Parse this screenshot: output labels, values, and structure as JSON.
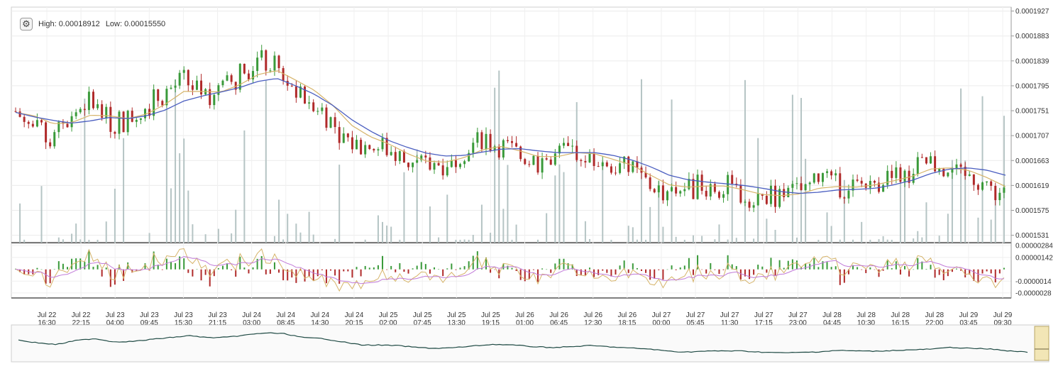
{
  "header": {
    "settings_icon": "gear-icon",
    "high_label": "High:",
    "high_value": "0.00018912",
    "low_label": "Low:",
    "low_value": "0.00015550"
  },
  "colors": {
    "up": "#3a9a3a",
    "down": "#b02a2a",
    "volume": "#b5c4c4",
    "ma_fast": "#d6b46a",
    "ma_slow": "#4a5ec0",
    "macd_line": "#d6b46a",
    "signal_line": "#c07ad8",
    "navigator": "#1f4a44"
  },
  "chart_data": {
    "type": "candlestick",
    "price_axis": {
      "ticks": [
        "0.0001927",
        "0.0001883",
        "0.0001839",
        "0.0001795",
        "0.0001751",
        "0.0001707",
        "0.0001663",
        "0.0001619",
        "0.0001575",
        "0.0001531"
      ],
      "range": [
        0.0001518,
        0.0001934
      ]
    },
    "indicator_axis": {
      "ticks": [
        "0.00000284",
        "0.00000142",
        "-0.0000014",
        "-0.0000028"
      ],
      "range": [
        -3.4e-06,
        3.1e-06
      ]
    },
    "time_labels": [
      {
        "d": "Jul 22",
        "t": "16:30"
      },
      {
        "d": "Jul 22",
        "t": "22:15"
      },
      {
        "d": "Jul 23",
        "t": "04:00"
      },
      {
        "d": "Jul 23",
        "t": "09:45"
      },
      {
        "d": "Jul 23",
        "t": "15:30"
      },
      {
        "d": "Jul 23",
        "t": "21:15"
      },
      {
        "d": "Jul 24",
        "t": "03:00"
      },
      {
        "d": "Jul 24",
        "t": "08:45"
      },
      {
        "d": "Jul 24",
        "t": "14:30"
      },
      {
        "d": "Jul 24",
        "t": "20:15"
      },
      {
        "d": "Jul 25",
        "t": "02:00"
      },
      {
        "d": "Jul 25",
        "t": "07:45"
      },
      {
        "d": "Jul 25",
        "t": "13:30"
      },
      {
        "d": "Jul 25",
        "t": "19:15"
      },
      {
        "d": "Jul 26",
        "t": "01:00"
      },
      {
        "d": "Jul 26",
        "t": "06:45"
      },
      {
        "d": "Jul 26",
        "t": "12:30"
      },
      {
        "d": "Jul 26",
        "t": "18:15"
      },
      {
        "d": "Jul 27",
        "t": "00:00"
      },
      {
        "d": "Jul 27",
        "t": "05:45"
      },
      {
        "d": "Jul 27",
        "t": "11:30"
      },
      {
        "d": "Jul 27",
        "t": "17:15"
      },
      {
        "d": "Jul 27",
        "t": "23:00"
      },
      {
        "d": "Jul 28",
        "t": "04:45"
      },
      {
        "d": "Jul 28",
        "t": "10:30"
      },
      {
        "d": "Jul 28",
        "t": "16:15"
      },
      {
        "d": "Jul 28",
        "t": "22:00"
      },
      {
        "d": "Jul 29",
        "t": "03:45"
      },
      {
        "d": "Jul 29",
        "t": "09:30"
      }
    ],
    "close": [
      0.000175,
      0.0001718,
      0.0001697,
      0.0001745,
      0.000177,
      0.000173,
      0.0001735,
      0.000176,
      0.0001783,
      0.0001805,
      0.000178,
      0.0001786,
      0.0001815,
      0.000184,
      0.0001828,
      0.000178,
      0.000177,
      0.000173,
      0.0001692,
      0.000169,
      0.0001683,
      0.000166,
      0.000165,
      0.000166,
      0.0001682,
      0.00017,
      0.000169,
      0.0001672,
      0.000166,
      0.000167,
      0.0001685,
      0.000167,
      0.0001655,
      0.0001645,
      0.000162,
      0.0001605,
      0.0001615,
      0.000162,
      0.0001618,
      0.0001605,
      0.0001596,
      0.00016,
      0.0001608,
      0.0001625,
      0.000162,
      0.0001615,
      0.0001625,
      0.0001633,
      0.0001642,
      0.0001662,
      0.000165,
      0.0001643,
      0.000162,
      0.0001603
    ],
    "ma_fast": [
      0.0001748,
      0.0001742,
      0.0001728,
      0.000173,
      0.0001743,
      0.0001742,
      0.0001737,
      0.0001745,
      0.0001762,
      0.0001785,
      0.0001785,
      0.0001784,
      0.0001797,
      0.0001815,
      0.0001822,
      0.0001805,
      0.0001787,
      0.000176,
      0.0001725,
      0.0001705,
      0.0001692,
      0.0001675,
      0.0001662,
      0.000166,
      0.0001668,
      0.0001682,
      0.0001688,
      0.000168,
      0.000167,
      0.000167,
      0.0001677,
      0.0001675,
      0.0001665,
      0.0001655,
      0.0001637,
      0.000162,
      0.0001616,
      0.0001618,
      0.0001618,
      0.0001611,
      0.0001603,
      0.0001601,
      0.0001604,
      0.0001614,
      0.0001617,
      0.0001616,
      0.000162,
      0.0001627,
      0.0001635,
      0.0001648,
      0.000165,
      0.0001646,
      0.0001633,
      0.0001617
    ],
    "ma_slow": [
      0.0001748,
      0.000174,
      0.0001734,
      0.0001729,
      0.0001733,
      0.0001739,
      0.0001737,
      0.0001742,
      0.0001752,
      0.0001768,
      0.0001777,
      0.0001784,
      0.0001792,
      0.0001803,
      0.0001808,
      0.0001795,
      0.000178,
      0.000176,
      0.0001735,
      0.0001715,
      0.0001698,
      0.0001686,
      0.0001676,
      0.0001671,
      0.0001672,
      0.0001678,
      0.0001683,
      0.0001684,
      0.000168,
      0.0001677,
      0.0001677,
      0.0001677,
      0.0001672,
      0.0001664,
      0.0001652,
      0.0001637,
      0.0001629,
      0.0001625,
      0.0001622,
      0.0001619,
      0.0001614,
      0.0001608,
      0.0001605,
      0.0001607,
      0.0001611,
      0.0001612,
      0.0001614,
      0.000162,
      0.0001628,
      0.000164,
      0.0001648,
      0.000165,
      0.0001646,
      0.0001637
    ]
  }
}
